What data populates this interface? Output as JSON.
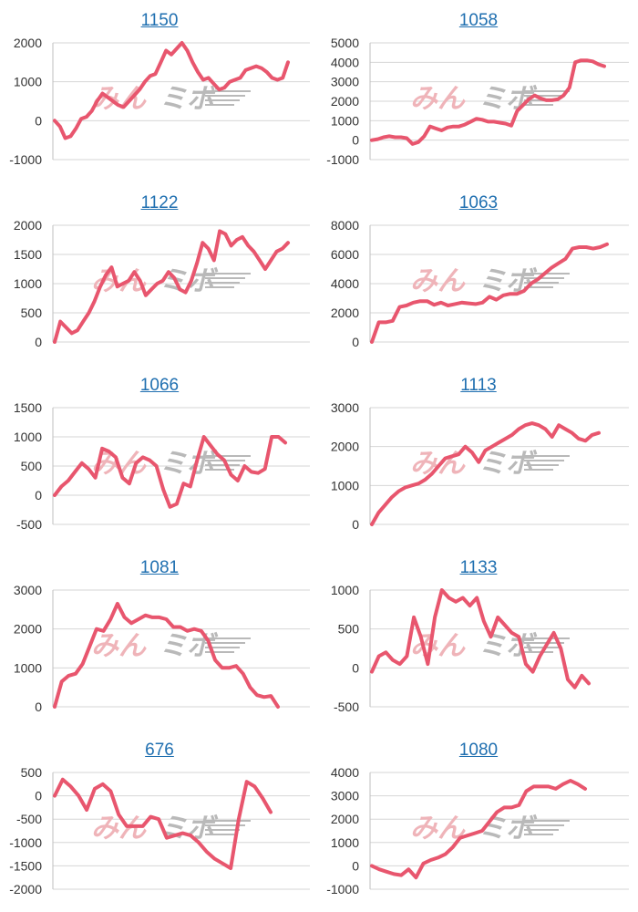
{
  "colors": {
    "series": "#e8566e",
    "title_link": "#1f6fb0",
    "watermark_pink": "#efb4b9",
    "watermark_gray": "#b9b9b9"
  },
  "watermark": {
    "text_a": "みん",
    "text_b": "ミボ"
  },
  "chart_data": [
    {
      "type": "line",
      "title": "1150",
      "ylim": [
        -1000,
        2000
      ],
      "yticks": [
        -1000,
        0,
        1000,
        2000
      ],
      "grid": true,
      "series": [
        {
          "values": [
            0,
            -150,
            -450,
            -400,
            -200,
            50,
            100,
            250,
            500,
            700,
            600,
            500,
            400,
            350,
            500,
            650,
            800,
            1000,
            1150,
            1200,
            1500,
            1800,
            1700,
            1850,
            2000,
            1800,
            1500,
            1250,
            1050,
            1100,
            950,
            800,
            850,
            1000,
            1050,
            1100,
            1300,
            1350,
            1400,
            1350,
            1250,
            1100,
            1050,
            1100,
            1500
          ]
        }
      ]
    },
    {
      "type": "line",
      "title": "1058",
      "ylim": [
        -1000,
        5000
      ],
      "yticks": [
        -1000,
        0,
        1000,
        2000,
        3000,
        4000,
        5000
      ],
      "grid": true,
      "series": [
        {
          "values": [
            0,
            50,
            150,
            200,
            150,
            150,
            100,
            -200,
            -100,
            200,
            700,
            600,
            500,
            650,
            700,
            700,
            800,
            950,
            1100,
            1050,
            950,
            950,
            900,
            850,
            750,
            1500,
            1800,
            2100,
            2300,
            2150,
            2050,
            2050,
            2100,
            2300,
            2700,
            4000,
            4100,
            4100,
            4050,
            3900,
            3800
          ]
        }
      ]
    },
    {
      "type": "line",
      "title": "1122",
      "ylim": [
        0,
        2000
      ],
      "yticks": [
        0,
        500,
        1000,
        1500,
        2000
      ],
      "grid": true,
      "series": [
        {
          "values": [
            0,
            350,
            250,
            150,
            200,
            350,
            500,
            700,
            950,
            1150,
            1280,
            950,
            1000,
            1050,
            1200,
            1050,
            800,
            900,
            1000,
            1050,
            1200,
            1100,
            900,
            850,
            1050,
            1350,
            1700,
            1600,
            1400,
            1900,
            1850,
            1650,
            1750,
            1800,
            1650,
            1550,
            1400,
            1250,
            1400,
            1550,
            1600,
            1700
          ]
        }
      ]
    },
    {
      "type": "line",
      "title": "1063",
      "ylim": [
        0,
        8000
      ],
      "yticks": [
        0,
        2000,
        4000,
        6000,
        8000
      ],
      "grid": true,
      "series": [
        {
          "values": [
            0,
            1350,
            1350,
            1450,
            2400,
            2500,
            2700,
            2800,
            2800,
            2550,
            2700,
            2500,
            2600,
            2700,
            2650,
            2600,
            2700,
            3100,
            2900,
            3200,
            3300,
            3300,
            3500,
            4000,
            4300,
            4700,
            5100,
            5400,
            5700,
            6400,
            6500,
            6500,
            6400,
            6500,
            6700
          ]
        }
      ]
    },
    {
      "type": "line",
      "title": "1066",
      "ylim": [
        -500,
        1500
      ],
      "yticks": [
        -500,
        0,
        500,
        1000,
        1500
      ],
      "grid": true,
      "series": [
        {
          "values": [
            0,
            150,
            250,
            400,
            550,
            450,
            300,
            800,
            750,
            650,
            300,
            200,
            550,
            650,
            600,
            500,
            100,
            -200,
            -150,
            200,
            150,
            600,
            1000,
            850,
            700,
            600,
            350,
            250,
            500,
            400,
            380,
            450,
            1000,
            1000,
            900
          ]
        }
      ]
    },
    {
      "type": "line",
      "title": "1113",
      "ylim": [
        0,
        3000
      ],
      "yticks": [
        0,
        1000,
        2000,
        3000
      ],
      "grid": true,
      "series": [
        {
          "values": [
            0,
            300,
            500,
            700,
            850,
            950,
            1000,
            1050,
            1150,
            1300,
            1500,
            1700,
            1750,
            1800,
            2000,
            1850,
            1600,
            1900,
            2000,
            2100,
            2200,
            2300,
            2450,
            2550,
            2600,
            2550,
            2450,
            2250,
            2550,
            2450,
            2350,
            2200,
            2150,
            2300,
            2350
          ]
        }
      ]
    },
    {
      "type": "line",
      "title": "1081",
      "ylim": [
        0,
        3000
      ],
      "yticks": [
        0,
        1000,
        2000,
        3000
      ],
      "grid": true,
      "series": [
        {
          "values": [
            0,
            650,
            800,
            850,
            1100,
            1550,
            2000,
            1950,
            2250,
            2650,
            2300,
            2150,
            2250,
            2350,
            2300,
            2300,
            2250,
            2050,
            2050,
            1950,
            2000,
            1950,
            1700,
            1200,
            1000,
            1000,
            1050,
            850,
            500,
            300,
            250,
            280,
            0
          ]
        }
      ]
    },
    {
      "type": "line",
      "title": "1133",
      "ylim": [
        -500,
        1000
      ],
      "yticks": [
        -500,
        0,
        500,
        1000
      ],
      "grid": true,
      "series": [
        {
          "values": [
            -50,
            150,
            200,
            100,
            50,
            150,
            650,
            400,
            50,
            650,
            1000,
            900,
            850,
            900,
            800,
            900,
            600,
            400,
            650,
            550,
            450,
            400,
            50,
            -50,
            150,
            300,
            450,
            250,
            -150,
            -250,
            -100,
            -200
          ]
        }
      ]
    },
    {
      "type": "line",
      "title": "676",
      "ylim": [
        -2000,
        500
      ],
      "yticks": [
        -2000,
        -1500,
        -1000,
        -500,
        0,
        500
      ],
      "grid": true,
      "series": [
        {
          "values": [
            0,
            350,
            200,
            0,
            -300,
            150,
            250,
            100,
            -400,
            -650,
            -650,
            -650,
            -450,
            -500,
            -900,
            -850,
            -800,
            -850,
            -1000,
            -1200,
            -1350,
            -1450,
            -1550,
            -500,
            300,
            200,
            -50,
            -350
          ]
        }
      ]
    },
    {
      "type": "line",
      "title": "1080",
      "ylim": [
        -1000,
        4000
      ],
      "yticks": [
        -1000,
        0,
        1000,
        2000,
        3000,
        4000
      ],
      "grid": true,
      "series": [
        {
          "values": [
            0,
            -150,
            -250,
            -350,
            -400,
            -150,
            -500,
            100,
            250,
            350,
            500,
            800,
            1200,
            1300,
            1400,
            1500,
            1900,
            2300,
            2500,
            2500,
            2600,
            3200,
            3400,
            3400,
            3400,
            3300,
            3500,
            3650,
            3500,
            3300
          ]
        }
      ]
    }
  ]
}
